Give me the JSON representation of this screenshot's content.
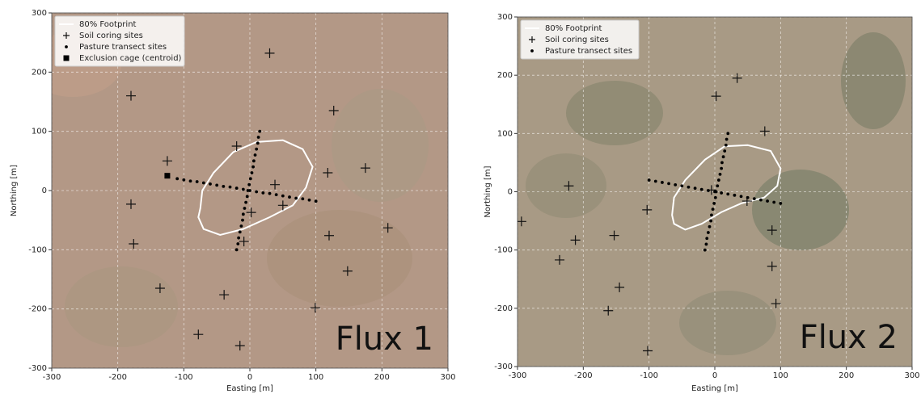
{
  "chart_data": [
    {
      "type": "scatter",
      "xlabel": "Easting [m]",
      "ylabel": "Northing [m]",
      "annotation": "Flux 1",
      "xlim": [
        -300,
        300
      ],
      "ylim": [
        -300,
        300
      ],
      "xticks": [
        -300,
        -200,
        -100,
        0,
        100,
        200,
        300
      ],
      "yticks": [
        -300,
        -200,
        -100,
        0,
        100,
        200,
        300
      ],
      "grid": true,
      "legend": "upper left",
      "background": "#b39886",
      "series": [
        {
          "name": "80% Footprint",
          "marker": "line",
          "color": "#ffffff",
          "x": [
            -75,
            -72,
            -55,
            -25,
            10,
            50,
            80,
            95,
            85,
            65,
            30,
            -10,
            -45,
            -70,
            -78
          ],
          "values": [
            -30,
            0,
            30,
            65,
            82,
            85,
            70,
            40,
            5,
            -25,
            -45,
            -65,
            -75,
            -65,
            -45
          ]
        },
        {
          "name": "Soil coring sites",
          "marker": "plus",
          "color": "#111111",
          "x": [
            30,
            -180,
            127,
            -20,
            -125,
            118,
            175,
            38,
            -180,
            50,
            2,
            -176,
            209,
            120,
            -9,
            148,
            -136,
            -39,
            99,
            -78,
            -15
          ],
          "values": [
            232,
            160,
            135,
            75,
            50,
            30,
            38,
            10,
            -23,
            -25,
            -37,
            -90,
            -63,
            -76,
            -86,
            -136,
            -165,
            -176,
            -198,
            -243,
            -262
          ]
        },
        {
          "name": "Pasture transect sites",
          "marker": "dot",
          "color": "#000000",
          "x": [
            -20,
            -18,
            -17,
            -15,
            -13,
            -11,
            -10,
            -8,
            -6,
            -4,
            -3,
            -1,
            1,
            3,
            5,
            6,
            8,
            10,
            12,
            13,
            15,
            -110,
            -100,
            -90,
            -80,
            -70,
            -60,
            -50,
            -40,
            -30,
            -20,
            -10,
            0,
            10,
            20,
            30,
            40,
            50,
            60,
            70,
            80,
            90,
            100
          ],
          "values": [
            -100,
            -90,
            -80,
            -70,
            -60,
            -50,
            -40,
            -30,
            -20,
            -10,
            0,
            10,
            20,
            30,
            40,
            50,
            60,
            70,
            80,
            90,
            100,
            20,
            18,
            16,
            15,
            13,
            11,
            9,
            7,
            6,
            4,
            2,
            0,
            -2,
            -4,
            -5,
            -7,
            -9,
            -11,
            -13,
            -14,
            -16,
            -18
          ]
        },
        {
          "name": "Exclusion cage (centroid)",
          "marker": "square",
          "color": "#000000",
          "x": [
            -125
          ],
          "values": [
            25
          ]
        }
      ]
    },
    {
      "type": "scatter",
      "xlabel": "Easting [m]",
      "ylabel": "Northing [m]",
      "annotation": "Flux 2",
      "xlim": [
        -300,
        300
      ],
      "ylim": [
        -300,
        300
      ],
      "xticks": [
        -300,
        -200,
        -100,
        0,
        100,
        200,
        300
      ],
      "yticks": [
        -300,
        -200,
        -100,
        0,
        100,
        200,
        300
      ],
      "grid": true,
      "legend": "upper left",
      "background": "#a89a85",
      "series": [
        {
          "name": "80% Footprint",
          "marker": "line",
          "color": "#ffffff",
          "x": [
            -65,
            -62,
            -45,
            -15,
            15,
            50,
            85,
            100,
            95,
            75,
            40,
            10,
            -20,
            -45,
            -62
          ],
          "values": [
            -40,
            -10,
            20,
            55,
            78,
            80,
            70,
            40,
            10,
            -10,
            -20,
            -35,
            -55,
            -65,
            -55
          ]
        },
        {
          "name": "Soil coring sites",
          "marker": "plus",
          "color": "#111111",
          "x": [
            34,
            2,
            76,
            -222,
            -5,
            49,
            -294,
            -103,
            -212,
            -153,
            87,
            -236,
            87,
            -145,
            -162,
            93,
            -102
          ],
          "values": [
            195,
            164,
            104,
            10,
            3,
            -16,
            -51,
            -31,
            -83,
            -75,
            -66,
            -117,
            -128,
            -164,
            -204,
            -192,
            -273
          ]
        },
        {
          "name": "Pasture transect sites",
          "marker": "dot",
          "color": "#000000",
          "x": [
            -15,
            -13,
            -12,
            -10,
            -8,
            -6,
            -5,
            -3,
            -1,
            1,
            2,
            4,
            6,
            8,
            10,
            11,
            13,
            15,
            17,
            18,
            20,
            -100,
            -90,
            -80,
            -70,
            -60,
            -50,
            -40,
            -30,
            -20,
            -10,
            0,
            10,
            20,
            30,
            40,
            50,
            60,
            70,
            80,
            90,
            100
          ],
          "values": [
            -100,
            -90,
            -80,
            -70,
            -60,
            -50,
            -40,
            -30,
            -20,
            -10,
            0,
            10,
            20,
            30,
            40,
            50,
            60,
            70,
            80,
            90,
            100,
            20,
            18,
            16,
            14,
            12,
            10,
            8,
            6,
            4,
            2,
            0,
            -2,
            -4,
            -6,
            -8,
            -10,
            -12,
            -14,
            -16,
            -18,
            -20
          ]
        }
      ]
    }
  ]
}
